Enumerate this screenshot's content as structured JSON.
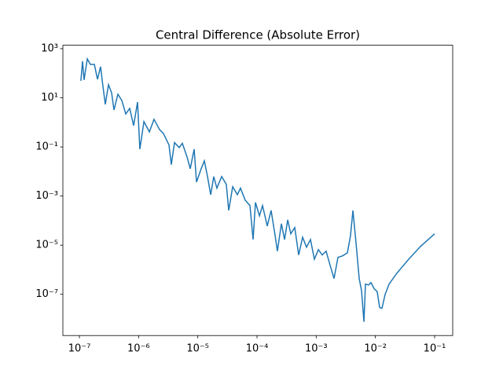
{
  "chart_data": {
    "type": "line",
    "title": "Central Difference (Absolute Error)",
    "xscale": "log",
    "yscale": "log",
    "color": "#1f77b4",
    "x": [
      1.06e-07,
      1.13e-07,
      1.2e-07,
      1.36e-07,
      1.53e-07,
      1.79e-07,
      2.02e-07,
      2.28e-07,
      2.5e-07,
      2.74e-07,
      3.1e-07,
      3.5e-07,
      3.84e-07,
      4.47e-07,
      5.21e-07,
      6.07e-07,
      7.08e-07,
      8.24e-07,
      9.6e-07,
      1.05e-06,
      1.23e-06,
      1.52e-06,
      1.82e-06,
      2.26e-06,
      2.63e-06,
      3.26e-06,
      3.57e-06,
      4.04e-06,
      4.85e-06,
      5.48e-06,
      6.59e-06,
      7.45e-06,
      8.68e-06,
      9.51e-06,
      1.14e-05,
      1.29e-05,
      1.46e-05,
      1.65e-05,
      1.86e-05,
      2.1e-05,
      2.53e-05,
      3.03e-05,
      3.33e-05,
      3.88e-05,
      4.66e-05,
      5.26e-05,
      6.32e-05,
      7.6e-05,
      8.59e-05,
      9.41e-05,
      0.00011,
      0.000124,
      0.000149,
      0.000173,
      0.000202,
      0.000221,
      0.000258,
      0.000292,
      0.00033,
      0.000372,
      0.000434,
      0.000506,
      0.000589,
      0.000686,
      0.0008,
      0.000931,
      0.00109,
      0.00126,
      0.00147,
      0.00172,
      0.002,
      0.00233,
      0.0028,
      0.00336,
      0.0038,
      0.00417,
      0.00471,
      0.00532,
      0.00583,
      0.0064,
      0.00679,
      0.00767,
      0.00841,
      0.00951,
      0.0107,
      0.0118,
      0.0129,
      0.0146,
      0.017,
      0.0231,
      0.0365,
      0.0577,
      0.1
    ],
    "values": [
      49,
      308,
      53,
      385,
      230,
      230,
      57,
      184,
      29,
      5.4,
      34,
      16,
      3.2,
      14,
      7.8,
      2.2,
      3.7,
      0.74,
      6.7,
      0.081,
      1.07,
      0.41,
      1.33,
      0.51,
      0.35,
      0.12,
      0.019,
      0.15,
      0.094,
      0.14,
      0.039,
      0.013,
      0.081,
      0.0037,
      0.013,
      0.027,
      0.0062,
      0.00114,
      0.0062,
      0.0021,
      0.0062,
      0.003,
      0.00026,
      0.0024,
      0.00114,
      0.0021,
      0.00068,
      0.00041,
      1.7e-05,
      0.00055,
      0.000157,
      0.00041,
      6e-05,
      0.00026,
      2.5e-05,
      5.7e-06,
      7.5e-05,
      1.7e-05,
      0.000108,
      2.9e-05,
      5.2e-05,
      4e-06,
      2.1e-05,
      8.3e-06,
      1.7e-05,
      2.7e-06,
      6.6e-06,
      4e-06,
      5.7e-06,
      1.5e-06,
      4.4e-07,
      3.2e-06,
      3.7e-06,
      4.9e-06,
      2.5e-05,
      0.00026,
      1.2e-05,
      4.4e-07,
      1.4e-07,
      7.6e-09,
      2.6e-07,
      2.4e-07,
      3e-07,
      1.7e-07,
      1.3e-07,
      2.9e-08,
      2.7e-08,
      1e-07,
      2.6e-07,
      7.3e-07,
      2.7e-06,
      8.9e-06,
      2.9e-05
    ],
    "xlim": [
      5.26e-08,
      0.202
    ],
    "ylim": [
      2.1e-09,
      1380
    ],
    "xticks": [
      {
        "value": 1e-07,
        "label": "10⁻⁷"
      },
      {
        "value": 1e-06,
        "label": "10⁻⁶"
      },
      {
        "value": 1e-05,
        "label": "10⁻⁵"
      },
      {
        "value": 0.0001,
        "label": "10⁻⁴"
      },
      {
        "value": 0.001,
        "label": "10⁻³"
      },
      {
        "value": 0.01,
        "label": "10⁻²"
      },
      {
        "value": 0.1,
        "label": "10⁻¹"
      }
    ],
    "yticks": [
      {
        "value": 1e-07,
        "label": "10⁻⁷"
      },
      {
        "value": 1e-05,
        "label": "10⁻⁵"
      },
      {
        "value": 0.001,
        "label": "10⁻³"
      },
      {
        "value": 0.1,
        "label": "10⁻¹"
      },
      {
        "value": 10,
        "label": "10¹"
      },
      {
        "value": 1000,
        "label": "10³"
      }
    ]
  }
}
